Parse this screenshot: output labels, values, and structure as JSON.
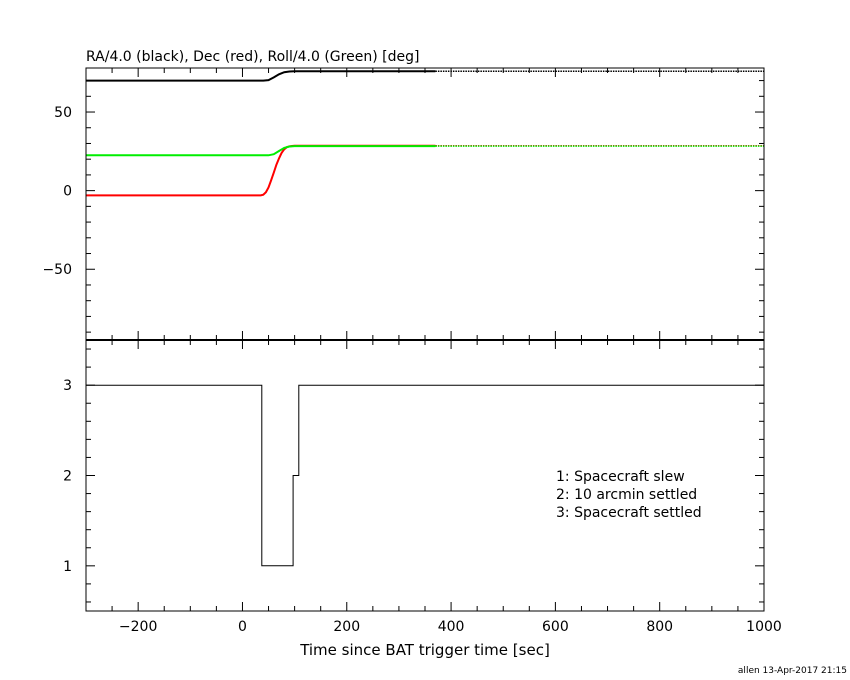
{
  "chart_data": [
    {
      "type": "line",
      "title": "RA/4.0 (black), Dec (red), Roll/4.0 (Green) [deg]",
      "xlim": [
        -300,
        1000
      ],
      "ylim": [
        -95,
        78
      ],
      "yticks": [
        -50,
        0,
        50
      ],
      "ytick_labels": [
        "−50",
        "0",
        "50"
      ],
      "grid": false,
      "series": [
        {
          "color": "#000000",
          "x": [
            -300,
            40,
            50,
            60,
            70,
            80,
            90,
            100,
            370,
            1000
          ],
          "y": [
            70.0,
            70.0,
            70.3,
            72.0,
            74.0,
            75.3,
            75.8,
            75.9,
            75.9,
            75.9
          ],
          "dotted_after": 370
        },
        {
          "color": "#ff0000",
          "x": [
            -300,
            35,
            40,
            45,
            50,
            55,
            60,
            65,
            70,
            75,
            80,
            85,
            90,
            95,
            100,
            110,
            370,
            1000
          ],
          "y": [
            -3.0,
            -3.0,
            -2.6,
            -1.0,
            2.0,
            6.5,
            11.5,
            16.5,
            20.5,
            24.0,
            26.3,
            27.6,
            28.2,
            28.4,
            28.5,
            28.5,
            28.5,
            28.5
          ],
          "dotted_after": 370
        },
        {
          "color": "#00ee00",
          "x": [
            -300,
            50,
            60,
            70,
            80,
            90,
            100,
            370,
            1000
          ],
          "y": [
            22.5,
            22.5,
            23.2,
            25.2,
            27.2,
            28.1,
            28.3,
            28.3,
            28.3
          ],
          "dotted_after": 370
        }
      ]
    },
    {
      "type": "line",
      "step": true,
      "xlabel": "Time since BAT trigger time [sec]",
      "xlim": [
        -300,
        1000
      ],
      "ylim": [
        0.5,
        3.5
      ],
      "xticks": [
        -200,
        0,
        200,
        400,
        600,
        800,
        1000
      ],
      "xtick_labels": [
        "−200",
        "0",
        "200",
        "400",
        "600",
        "800",
        "1000"
      ],
      "yticks": [
        1,
        2,
        3
      ],
      "ytick_labels": [
        "1",
        "2",
        "3"
      ],
      "grid": false,
      "series": [
        {
          "color": "#000000",
          "x": [
            -300,
            37,
            37,
            97,
            97,
            108,
            108,
            1000
          ],
          "y": [
            3,
            3,
            1,
            1,
            2,
            2,
            3,
            3
          ]
        }
      ],
      "annotations": [
        "1: Spacecraft slew",
        "2: 10 arcmin settled",
        "3: Spacecraft settled"
      ]
    }
  ],
  "footer": "allen 13-Apr-2017 21:15"
}
